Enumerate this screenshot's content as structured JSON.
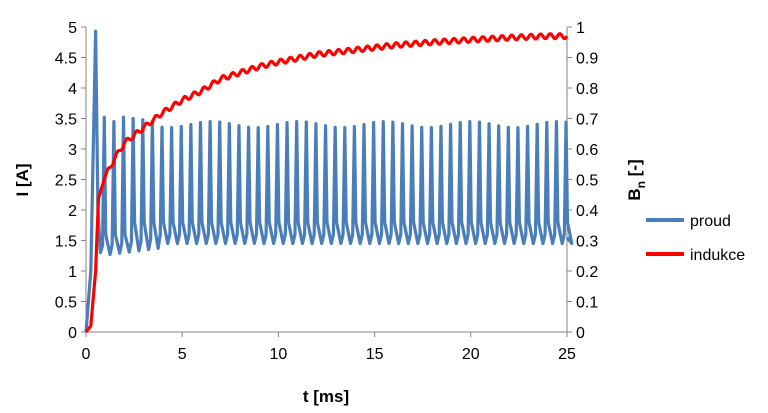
{
  "chart_data": {
    "type": "line",
    "xlabel": "t [ms]",
    "ylabel_left": "I [A]",
    "ylabel_right": {
      "main": "B",
      "sub": "n",
      "rest": " [-]"
    },
    "xlim": [
      0,
      25
    ],
    "ylim_left": [
      0,
      5
    ],
    "ylim_right": [
      0,
      1
    ],
    "x_ticks": [
      "0",
      "5",
      "10",
      "15",
      "20",
      "25"
    ],
    "y_left_ticks": [
      "0",
      "0.5",
      "1",
      "1.5",
      "2",
      "2.5",
      "3",
      "3.5",
      "4",
      "4.5",
      "5"
    ],
    "y_right_ticks": [
      "0",
      "0.1",
      "0.2",
      "0.3",
      "0.4",
      "0.5",
      "0.6",
      "0.7",
      "0.8",
      "0.9",
      "1"
    ],
    "grid": false,
    "legend_position": "right",
    "series": [
      {
        "name": "proud",
        "axis": "left",
        "color": "#4a7ebb",
        "description_values": {
          "period_ms": 0.5,
          "first_peak": {
            "t": 0.5,
            "value": 4.93
          },
          "steady_peak_range": [
            3.38,
            3.5
          ],
          "steady_min_range": [
            1.25,
            1.5
          ],
          "start_value": 0.0,
          "end_value": 1.55
        }
      },
      {
        "name": "indukce",
        "axis": "right",
        "color": "#ff0000",
        "points": [
          [
            0.0,
            0.0
          ],
          [
            0.25,
            0.02
          ],
          [
            0.5,
            0.2
          ],
          [
            0.65,
            0.44
          ],
          [
            1.0,
            0.51
          ],
          [
            1.5,
            0.57
          ],
          [
            2.0,
            0.62
          ],
          [
            3.0,
            0.67
          ],
          [
            4.0,
            0.72
          ],
          [
            5.0,
            0.76
          ],
          [
            6.0,
            0.79
          ],
          [
            7.0,
            0.83
          ],
          [
            8.0,
            0.85
          ],
          [
            9.0,
            0.87
          ],
          [
            10.0,
            0.885
          ],
          [
            12.0,
            0.91
          ],
          [
            14.0,
            0.925
          ],
          [
            16.0,
            0.94
          ],
          [
            18.0,
            0.95
          ],
          [
            20.0,
            0.958
          ],
          [
            22.0,
            0.965
          ],
          [
            24.0,
            0.97
          ],
          [
            25.0,
            0.97
          ]
        ],
        "ripple_amplitude": 0.008
      }
    ]
  }
}
